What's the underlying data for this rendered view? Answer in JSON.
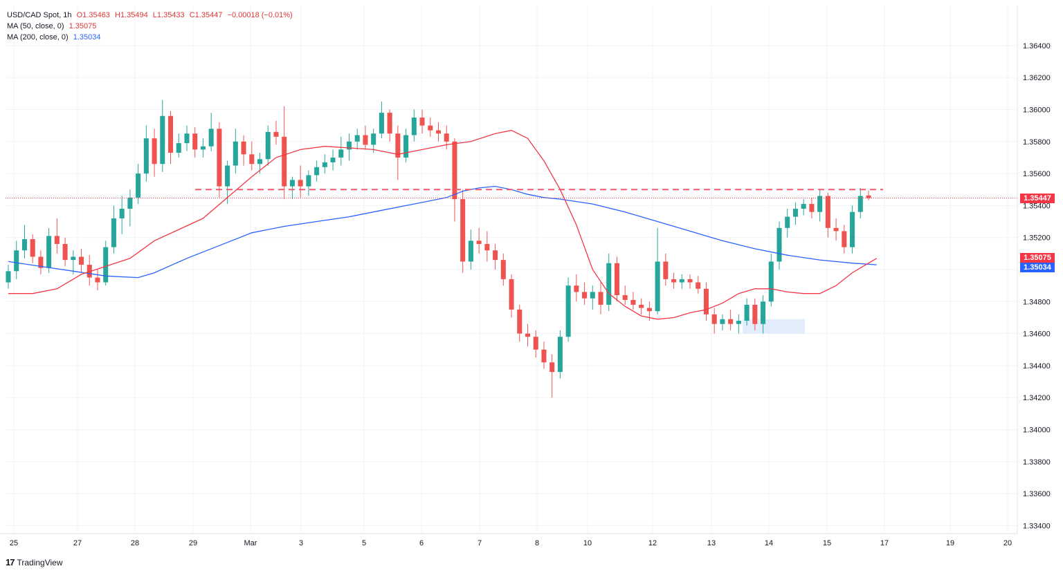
{
  "legend": {
    "symbol": "USD/CAD Spot, 1h",
    "open": "O1.35463",
    "high": "H1.35494",
    "low": "L1.35433",
    "close": "C1.35447",
    "change": "−0.00018 (−0.01%)",
    "ma50_label": "MA (50, close, 0)",
    "ma50_value": "1.35075",
    "ma200_label": "MA (200, close, 0)",
    "ma200_value": "1.35034"
  },
  "brand": "TradingView",
  "price_tags": {
    "last": "1.35447",
    "ma50": "1.35075",
    "ma200": "1.35034"
  },
  "colors": {
    "up": "#26a69a",
    "down": "#ef5350",
    "ma50": "#f23645",
    "ma200": "#2962ff",
    "resistance": "#f05a6a",
    "support_zone": "#dbe8fb"
  },
  "chart_data": {
    "type": "candlestick",
    "ylim": [
      1.3335,
      1.3665
    ],
    "y_ticks": [
      "1.33400",
      "1.33600",
      "1.33800",
      "1.34000",
      "1.34200",
      "1.34400",
      "1.34600",
      "1.34800",
      "1.35000",
      "1.35200",
      "1.35400",
      "1.35600",
      "1.35800",
      "1.36000",
      "1.36200",
      "1.36400"
    ],
    "x_ticks": [
      "25",
      "27",
      "28",
      "29",
      "Mar",
      "3",
      "5",
      "6",
      "7",
      "8",
      "10",
      "12",
      "13",
      "14",
      "15",
      "17",
      "19",
      "20"
    ],
    "resistance_level": 1.355,
    "last_price": 1.35447,
    "support_zone": [
      1.346,
      1.3469
    ],
    "ma50": [
      [
        0,
        1.3485
      ],
      [
        3,
        1.3485
      ],
      [
        6,
        1.3488
      ],
      [
        9,
        1.3497
      ],
      [
        12,
        1.3502
      ],
      [
        15,
        1.3507
      ],
      [
        18,
        1.3518
      ],
      [
        21,
        1.3525
      ],
      [
        24,
        1.3532
      ],
      [
        27,
        1.3545
      ],
      [
        30,
        1.3558
      ],
      [
        33,
        1.357
      ],
      [
        36,
        1.3575
      ],
      [
        39,
        1.3577
      ],
      [
        42,
        1.3576
      ],
      [
        45,
        1.3575
      ],
      [
        48,
        1.3572
      ],
      [
        51,
        1.3575
      ],
      [
        54,
        1.3578
      ],
      [
        57,
        1.358
      ],
      [
        60,
        1.3585
      ],
      [
        62,
        1.3587
      ],
      [
        64,
        1.3582
      ],
      [
        66,
        1.3568
      ],
      [
        68,
        1.355
      ],
      [
        70,
        1.3528
      ],
      [
        72,
        1.35
      ],
      [
        74,
        1.3485
      ],
      [
        76,
        1.3477
      ],
      [
        78,
        1.3471
      ],
      [
        80,
        1.3469
      ],
      [
        82,
        1.347
      ],
      [
        84,
        1.3473
      ],
      [
        86,
        1.3475
      ],
      [
        88,
        1.3479
      ],
      [
        90,
        1.3485
      ],
      [
        92,
        1.3488
      ],
      [
        94,
        1.3488
      ],
      [
        96,
        1.3486
      ],
      [
        98,
        1.3485
      ],
      [
        100,
        1.3485
      ],
      [
        102,
        1.349
      ],
      [
        104,
        1.3498
      ],
      [
        106,
        1.3504
      ],
      [
        107,
        1.3507
      ]
    ],
    "ma200": [
      [
        0,
        1.3505
      ],
      [
        4,
        1.3502
      ],
      [
        8,
        1.3499
      ],
      [
        12,
        1.3496
      ],
      [
        16,
        1.3495
      ],
      [
        18,
        1.3498
      ],
      [
        22,
        1.3507
      ],
      [
        26,
        1.3515
      ],
      [
        30,
        1.3523
      ],
      [
        34,
        1.3527
      ],
      [
        38,
        1.353
      ],
      [
        42,
        1.3533
      ],
      [
        46,
        1.3537
      ],
      [
        50,
        1.3541
      ],
      [
        54,
        1.3545
      ],
      [
        56,
        1.3549
      ],
      [
        58,
        1.3551
      ],
      [
        60,
        1.3552
      ],
      [
        62,
        1.355
      ],
      [
        64,
        1.3547
      ],
      [
        66,
        1.3545
      ],
      [
        68,
        1.3544
      ],
      [
        72,
        1.3541
      ],
      [
        76,
        1.3536
      ],
      [
        80,
        1.353
      ],
      [
        84,
        1.3524
      ],
      [
        88,
        1.3518
      ],
      [
        92,
        1.3513
      ],
      [
        96,
        1.3509
      ],
      [
        100,
        1.3506
      ],
      [
        104,
        1.3504
      ],
      [
        107,
        1.3503
      ]
    ],
    "ohlc": [
      [
        1.3492,
        1.3503,
        1.3488,
        1.3499
      ],
      [
        1.3499,
        1.3518,
        1.3494,
        1.3512
      ],
      [
        1.3512,
        1.3528,
        1.3507,
        1.3519
      ],
      [
        1.3519,
        1.3522,
        1.3504,
        1.3508
      ],
      [
        1.3508,
        1.3512,
        1.3497,
        1.3501
      ],
      [
        1.3501,
        1.3526,
        1.3498,
        1.3521
      ],
      [
        1.3521,
        1.3532,
        1.351,
        1.3516
      ],
      [
        1.3516,
        1.352,
        1.3502,
        1.3506
      ],
      [
        1.3506,
        1.3512,
        1.3497,
        1.3508
      ],
      [
        1.3508,
        1.3513,
        1.3498,
        1.3503
      ],
      [
        1.3503,
        1.3509,
        1.349,
        1.3495
      ],
      [
        1.3495,
        1.35,
        1.3487,
        1.3492
      ],
      [
        1.3492,
        1.3518,
        1.349,
        1.3514
      ],
      [
        1.3514,
        1.354,
        1.351,
        1.3532
      ],
      [
        1.3532,
        1.3546,
        1.3522,
        1.3538
      ],
      [
        1.3538,
        1.355,
        1.3527,
        1.3545
      ],
      [
        1.3545,
        1.3566,
        1.3541,
        1.356
      ],
      [
        1.356,
        1.359,
        1.3555,
        1.3582
      ],
      [
        1.3582,
        1.3588,
        1.3558,
        1.3566
      ],
      [
        1.3566,
        1.3606,
        1.3561,
        1.3596
      ],
      [
        1.3596,
        1.3599,
        1.3566,
        1.3573
      ],
      [
        1.3573,
        1.3585,
        1.357,
        1.3579
      ],
      [
        1.3579,
        1.359,
        1.3574,
        1.3585
      ],
      [
        1.3585,
        1.3589,
        1.357,
        1.3575
      ],
      [
        1.3575,
        1.3582,
        1.357,
        1.3577
      ],
      [
        1.3577,
        1.3598,
        1.3574,
        1.3588
      ],
      [
        1.3588,
        1.3592,
        1.3545,
        1.3552
      ],
      [
        1.3552,
        1.3568,
        1.3541,
        1.3565
      ],
      [
        1.3565,
        1.3588,
        1.356,
        1.358
      ],
      [
        1.358,
        1.3584,
        1.3565,
        1.3572
      ],
      [
        1.3572,
        1.358,
        1.3562,
        1.3566
      ],
      [
        1.3566,
        1.3573,
        1.356,
        1.3569
      ],
      [
        1.3569,
        1.359,
        1.3565,
        1.3586
      ],
      [
        1.3586,
        1.3593,
        1.3578,
        1.3583
      ],
      [
        1.3583,
        1.3602,
        1.3544,
        1.3552
      ],
      [
        1.3552,
        1.3558,
        1.3544,
        1.3556
      ],
      [
        1.3556,
        1.3565,
        1.3545,
        1.3552
      ],
      [
        1.3552,
        1.3562,
        1.3546,
        1.3559
      ],
      [
        1.3559,
        1.3568,
        1.3555,
        1.3564
      ],
      [
        1.3564,
        1.3572,
        1.356,
        1.3567
      ],
      [
        1.3567,
        1.3575,
        1.3562,
        1.357
      ],
      [
        1.357,
        1.3583,
        1.3565,
        1.3575
      ],
      [
        1.3575,
        1.3585,
        1.3568,
        1.358
      ],
      [
        1.358,
        1.3588,
        1.3575,
        1.3584
      ],
      [
        1.3584,
        1.359,
        1.3575,
        1.3578
      ],
      [
        1.3578,
        1.3588,
        1.3573,
        1.3585
      ],
      [
        1.3585,
        1.3605,
        1.3582,
        1.3598
      ],
      [
        1.3598,
        1.36,
        1.358,
        1.3585
      ],
      [
        1.3585,
        1.359,
        1.3556,
        1.357
      ],
      [
        1.357,
        1.3588,
        1.3567,
        1.3584
      ],
      [
        1.3584,
        1.36,
        1.358,
        1.3595
      ],
      [
        1.3595,
        1.36,
        1.3585,
        1.359
      ],
      [
        1.359,
        1.3595,
        1.3583,
        1.3587
      ],
      [
        1.3587,
        1.3592,
        1.358,
        1.3585
      ],
      [
        1.3585,
        1.359,
        1.3575,
        1.358
      ],
      [
        1.358,
        1.3582,
        1.353,
        1.3544
      ],
      [
        1.3544,
        1.355,
        1.3498,
        1.3505
      ],
      [
        1.3505,
        1.3525,
        1.35,
        1.3518
      ],
      [
        1.3518,
        1.3526,
        1.351,
        1.3516
      ],
      [
        1.3516,
        1.3524,
        1.3505,
        1.3512
      ],
      [
        1.3512,
        1.3516,
        1.35,
        1.3506
      ],
      [
        1.3506,
        1.351,
        1.349,
        1.3494
      ],
      [
        1.3494,
        1.3497,
        1.347,
        1.3475
      ],
      [
        1.3475,
        1.3478,
        1.3455,
        1.346
      ],
      [
        1.346,
        1.3466,
        1.3452,
        1.3458
      ],
      [
        1.3458,
        1.3462,
        1.3445,
        1.345
      ],
      [
        1.345,
        1.3455,
        1.3438,
        1.3442
      ],
      [
        1.3442,
        1.3447,
        1.342,
        1.3436
      ],
      [
        1.3436,
        1.3462,
        1.3432,
        1.3458
      ],
      [
        1.3458,
        1.3495,
        1.3455,
        1.349
      ],
      [
        1.349,
        1.3497,
        1.348,
        1.3486
      ],
      [
        1.3486,
        1.3492,
        1.3478,
        1.3482
      ],
      [
        1.3482,
        1.349,
        1.3475,
        1.3486
      ],
      [
        1.3486,
        1.3492,
        1.3472,
        1.3478
      ],
      [
        1.3478,
        1.351,
        1.3474,
        1.3504
      ],
      [
        1.3504,
        1.3508,
        1.348,
        1.3484
      ],
      [
        1.3484,
        1.349,
        1.3478,
        1.3481
      ],
      [
        1.3481,
        1.3486,
        1.3475,
        1.3478
      ],
      [
        1.3478,
        1.3482,
        1.3472,
        1.3476
      ],
      [
        1.3476,
        1.348,
        1.3468,
        1.3474
      ],
      [
        1.3474,
        1.3526,
        1.3472,
        1.3505
      ],
      [
        1.3505,
        1.351,
        1.349,
        1.3494
      ],
      [
        1.3494,
        1.3498,
        1.3488,
        1.3492
      ],
      [
        1.3492,
        1.3497,
        1.3488,
        1.3494
      ],
      [
        1.3494,
        1.3497,
        1.3488,
        1.3492
      ],
      [
        1.3492,
        1.3496,
        1.3485,
        1.3488
      ],
      [
        1.3488,
        1.3492,
        1.3468,
        1.3472
      ],
      [
        1.3472,
        1.3476,
        1.346,
        1.3466
      ],
      [
        1.3466,
        1.3472,
        1.3462,
        1.3469
      ],
      [
        1.3469,
        1.3475,
        1.3462,
        1.3466
      ],
      [
        1.3466,
        1.3472,
        1.346,
        1.3468
      ],
      [
        1.3468,
        1.3482,
        1.3465,
        1.3478
      ],
      [
        1.3478,
        1.3482,
        1.3462,
        1.3466
      ],
      [
        1.3466,
        1.3484,
        1.346,
        1.348
      ],
      [
        1.348,
        1.351,
        1.3477,
        1.3505
      ],
      [
        1.3505,
        1.353,
        1.35,
        1.3526
      ],
      [
        1.3526,
        1.3538,
        1.352,
        1.3533
      ],
      [
        1.3533,
        1.3542,
        1.3528,
        1.3538
      ],
      [
        1.3538,
        1.3544,
        1.3534,
        1.3541
      ],
      [
        1.3541,
        1.3545,
        1.3532,
        1.3536
      ],
      [
        1.3536,
        1.355,
        1.353,
        1.3546
      ],
      [
        1.3546,
        1.3548,
        1.352,
        1.3526
      ],
      [
        1.3526,
        1.3532,
        1.3518,
        1.3524
      ],
      [
        1.3524,
        1.3528,
        1.351,
        1.3514
      ],
      [
        1.3514,
        1.354,
        1.351,
        1.3536
      ],
      [
        1.3536,
        1.3551,
        1.3532,
        1.3546
      ],
      [
        1.35463,
        1.35494,
        1.35433,
        1.35447
      ]
    ]
  }
}
